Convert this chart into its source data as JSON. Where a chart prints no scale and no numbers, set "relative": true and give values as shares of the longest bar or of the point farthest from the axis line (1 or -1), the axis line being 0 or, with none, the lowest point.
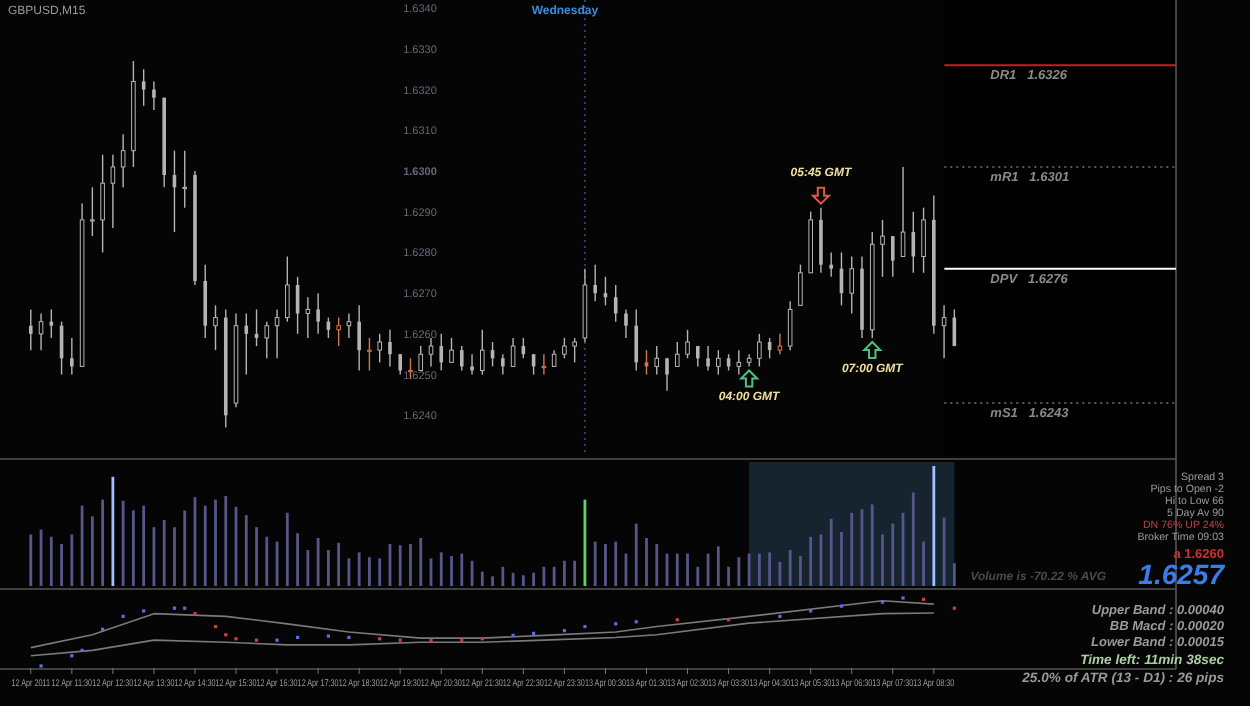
{
  "chart_data": [
    {
      "type": "candlestick",
      "title": "GBPUSD,M15",
      "x": [
        "2011-04-12T10:30",
        "2011-04-12T10:45",
        "2011-04-12T11:00",
        "2011-04-12T11:15",
        "2011-04-12T11:30",
        "2011-04-12T11:45",
        "2011-04-12T12:00",
        "2011-04-12T12:15",
        "2011-04-12T12:30",
        "2011-04-12T12:45",
        "2011-04-12T13:00",
        "2011-04-12T13:15",
        "2011-04-12T13:30",
        "2011-04-12T13:45",
        "2011-04-12T14:00",
        "2011-04-12T14:15",
        "2011-04-12T14:30",
        "2011-04-12T14:45",
        "2011-04-12T15:00",
        "2011-04-12T15:15",
        "2011-04-12T15:30",
        "2011-04-12T15:45",
        "2011-04-12T16:00",
        "2011-04-12T16:15",
        "2011-04-12T16:30",
        "2011-04-12T16:45",
        "2011-04-12T17:00",
        "2011-04-12T17:15",
        "2011-04-12T17:30",
        "2011-04-12T17:45",
        "2011-04-12T18:00",
        "2011-04-12T18:15",
        "2011-04-12T18:30",
        "2011-04-12T18:45",
        "2011-04-12T19:00",
        "2011-04-12T19:15",
        "2011-04-12T19:30",
        "2011-04-12T19:45",
        "2011-04-12T20:00",
        "2011-04-12T20:15",
        "2011-04-12T20:30",
        "2011-04-12T20:45",
        "2011-04-12T21:00",
        "2011-04-12T21:15",
        "2011-04-12T21:30",
        "2011-04-12T21:45",
        "2011-04-12T22:00",
        "2011-04-12T22:15",
        "2011-04-12T22:30",
        "2011-04-12T22:45",
        "2011-04-12T23:00",
        "2011-04-12T23:15",
        "2011-04-12T23:30",
        "2011-04-12T23:45",
        "2011-04-13T00:00",
        "2011-04-13T00:15",
        "2011-04-13T00:30",
        "2011-04-13T00:45",
        "2011-04-13T01:00",
        "2011-04-13T01:15",
        "2011-04-13T01:30",
        "2011-04-13T01:45",
        "2011-04-13T02:00",
        "2011-04-13T02:15",
        "2011-04-13T02:30",
        "2011-04-13T02:45",
        "2011-04-13T03:00",
        "2011-04-13T03:15",
        "2011-04-13T03:30",
        "2011-04-13T03:45",
        "2011-04-13T04:00",
        "2011-04-13T04:15",
        "2011-04-13T04:30",
        "2011-04-13T04:45",
        "2011-04-13T05:00",
        "2011-04-13T05:15",
        "2011-04-13T05:30",
        "2011-04-13T05:45",
        "2011-04-13T06:00",
        "2011-04-13T06:15",
        "2011-04-13T06:30",
        "2011-04-13T06:45",
        "2011-04-13T07:00",
        "2011-04-13T07:15",
        "2011-04-13T07:30",
        "2011-04-13T07:45",
        "2011-04-13T08:00",
        "2011-04-13T08:15",
        "2011-04-13T08:30",
        "2011-04-13T08:45",
        "2011-04-13T09:00"
      ],
      "ohlc": [
        [
          1.6262,
          1.6266,
          1.6256,
          1.626
        ],
        [
          1.626,
          1.6265,
          1.6256,
          1.6263
        ],
        [
          1.6263,
          1.6266,
          1.6259,
          1.6262
        ],
        [
          1.6262,
          1.6263,
          1.625,
          1.6254
        ],
        [
          1.6254,
          1.6259,
          1.625,
          1.6252
        ],
        [
          1.6252,
          1.6292,
          1.6252,
          1.6288
        ],
        [
          1.6288,
          1.6296,
          1.6284,
          1.6288
        ],
        [
          1.6288,
          1.6304,
          1.628,
          1.6297
        ],
        [
          1.6297,
          1.6304,
          1.6286,
          1.6301
        ],
        [
          1.6301,
          1.6309,
          1.6296,
          1.6305
        ],
        [
          1.6305,
          1.6327,
          1.6301,
          1.6322
        ],
        [
          1.6322,
          1.6325,
          1.6316,
          1.632
        ],
        [
          1.632,
          1.6322,
          1.6315,
          1.6318
        ],
        [
          1.6318,
          1.6318,
          1.6296,
          1.6299
        ],
        [
          1.6299,
          1.6305,
          1.6285,
          1.6296
        ],
        [
          1.6296,
          1.6305,
          1.6291,
          1.6296
        ],
        [
          1.6299,
          1.63,
          1.6272,
          1.6273
        ],
        [
          1.6273,
          1.6277,
          1.6259,
          1.6262
        ],
        [
          1.6262,
          1.6267,
          1.6256,
          1.6264
        ],
        [
          1.6264,
          1.6266,
          1.6237,
          1.624
        ],
        [
          1.6243,
          1.6265,
          1.6242,
          1.6262
        ],
        [
          1.6262,
          1.6265,
          1.625,
          1.626
        ],
        [
          1.626,
          1.6266,
          1.6257,
          1.6259
        ],
        [
          1.6259,
          1.6263,
          1.6254,
          1.6262
        ],
        [
          1.6262,
          1.6266,
          1.6254,
          1.6264
        ],
        [
          1.6264,
          1.6279,
          1.6263,
          1.6272
        ],
        [
          1.6272,
          1.6274,
          1.626,
          1.6265
        ],
        [
          1.6265,
          1.6269,
          1.6259,
          1.6266
        ],
        [
          1.6266,
          1.627,
          1.626,
          1.6263
        ],
        [
          1.6263,
          1.6264,
          1.6259,
          1.6261
        ],
        [
          1.6261,
          1.6264,
          1.6257,
          1.6262
        ],
        [
          1.6262,
          1.6265,
          1.6259,
          1.6263
        ],
        [
          1.6263,
          1.6267,
          1.6251,
          1.6256
        ],
        [
          1.6256,
          1.6259,
          1.6251,
          1.6256
        ],
        [
          1.6256,
          1.626,
          1.6253,
          1.6258
        ],
        [
          1.6258,
          1.6261,
          1.6252,
          1.6255
        ],
        [
          1.6255,
          1.6255,
          1.625,
          1.6251
        ],
        [
          1.6251,
          1.6254,
          1.6249,
          1.6251
        ],
        [
          1.6251,
          1.6257,
          1.6251,
          1.6255
        ],
        [
          1.6255,
          1.6259,
          1.6252,
          1.6257
        ],
        [
          1.6257,
          1.626,
          1.6251,
          1.6253
        ],
        [
          1.6253,
          1.6259,
          1.6253,
          1.6256
        ],
        [
          1.6256,
          1.6257,
          1.6251,
          1.6252
        ],
        [
          1.6252,
          1.6255,
          1.625,
          1.6251
        ],
        [
          1.6251,
          1.6261,
          1.625,
          1.6256
        ],
        [
          1.6256,
          1.6258,
          1.6252,
          1.6254
        ],
        [
          1.6254,
          1.6255,
          1.625,
          1.6252
        ],
        [
          1.6252,
          1.6259,
          1.6252,
          1.6257
        ],
        [
          1.6257,
          1.6259,
          1.6254,
          1.6255
        ],
        [
          1.6255,
          1.6255,
          1.625,
          1.6252
        ],
        [
          1.6252,
          1.6255,
          1.625,
          1.6252
        ],
        [
          1.6252,
          1.6256,
          1.6252,
          1.6255
        ],
        [
          1.6255,
          1.6259,
          1.6254,
          1.6257
        ],
        [
          1.6257,
          1.6259,
          1.6253,
          1.6258
        ],
        [
          1.6259,
          1.6276,
          1.6258,
          1.6272
        ],
        [
          1.6272,
          1.6277,
          1.6268,
          1.627
        ],
        [
          1.627,
          1.6274,
          1.6267,
          1.6269
        ],
        [
          1.6269,
          1.6272,
          1.6263,
          1.6265
        ],
        [
          1.6265,
          1.6266,
          1.6259,
          1.6262
        ],
        [
          1.6262,
          1.6266,
          1.6251,
          1.6253
        ],
        [
          1.6253,
          1.6256,
          1.625,
          1.6252
        ],
        [
          1.6252,
          1.6257,
          1.625,
          1.6254
        ],
        [
          1.6254,
          1.6254,
          1.6246,
          1.625
        ],
        [
          1.6252,
          1.6258,
          1.6252,
          1.6255
        ],
        [
          1.6255,
          1.6261,
          1.6254,
          1.6258
        ],
        [
          1.6257,
          1.6257,
          1.6252,
          1.6254
        ],
        [
          1.6254,
          1.6257,
          1.6251,
          1.6252
        ],
        [
          1.6252,
          1.6256,
          1.625,
          1.6254
        ],
        [
          1.6254,
          1.6255,
          1.6251,
          1.6252
        ],
        [
          1.6252,
          1.6256,
          1.625,
          1.6253
        ],
        [
          1.6253,
          1.6255,
          1.6252,
          1.6254
        ],
        [
          1.6254,
          1.626,
          1.6252,
          1.6258
        ],
        [
          1.6258,
          1.6259,
          1.6254,
          1.6256
        ],
        [
          1.6256,
          1.626,
          1.6255,
          1.6257
        ],
        [
          1.6257,
          1.6268,
          1.6256,
          1.6266
        ],
        [
          1.6267,
          1.6277,
          1.6267,
          1.6275
        ],
        [
          1.6275,
          1.629,
          1.6275,
          1.6288
        ],
        [
          1.6288,
          1.6291,
          1.6275,
          1.6277
        ],
        [
          1.6277,
          1.628,
          1.6274,
          1.6276
        ],
        [
          1.6276,
          1.628,
          1.6267,
          1.627
        ],
        [
          1.627,
          1.6279,
          1.6265,
          1.6276
        ],
        [
          1.6276,
          1.6279,
          1.6259,
          1.6261
        ],
        [
          1.6261,
          1.6285,
          1.6259,
          1.6282
        ],
        [
          1.6282,
          1.6288,
          1.6274,
          1.6284
        ],
        [
          1.6284,
          1.6284,
          1.6274,
          1.6278
        ],
        [
          1.6279,
          1.6301,
          1.6279,
          1.6285
        ],
        [
          1.6285,
          1.629,
          1.6275,
          1.6279
        ],
        [
          1.6279,
          1.6291,
          1.6275,
          1.6288
        ],
        [
          1.6288,
          1.6294,
          1.626,
          1.6262
        ],
        [
          1.6262,
          1.6267,
          1.6254,
          1.6264
        ],
        [
          1.6264,
          1.6266,
          1.6257,
          1.6257
        ]
      ],
      "colors": [
        "#b4b4b4",
        "#b4b4b4",
        "#b4b4b4",
        "#b4b4b4",
        "#b4b4b4",
        "#b4b4b4",
        "#b4b4b4",
        "#b4b4b4",
        "#b4b4b4",
        "#b4b4b4",
        "#b4b4b4",
        "#b4b4b4",
        "#b4b4b4",
        "#b4b4b4",
        "#b4b4b4",
        "#b4b4b4",
        "#b4b4b4",
        "#b4b4b4",
        "#b4b4b4",
        "#b4b4b4",
        "#b4b4b4",
        "#b4b4b4",
        "#b4b4b4",
        "#b4b4b4",
        "#b4b4b4",
        "#b4b4b4",
        "#b4b4b4",
        "#b4b4b4",
        "#b4b4b4",
        "#b4b4b4",
        "#d2784b",
        "#b4b4b4",
        "#b4b4b4",
        "#d2784b",
        "#b4b4b4",
        "#b4b4b4",
        "#b4b4b4",
        "#d2784b",
        "#b4b4b4",
        "#b4b4b4",
        "#b4b4b4",
        "#b4b4b4",
        "#b4b4b4",
        "#b4b4b4",
        "#b4b4b4",
        "#b4b4b4",
        "#b4b4b4",
        "#b4b4b4",
        "#b4b4b4",
        "#b4b4b4",
        "#d2784b",
        "#b4b4b4",
        "#b4b4b4",
        "#b4b4b4",
        "#b4b4b4",
        "#b4b4b4",
        "#b4b4b4",
        "#b4b4b4",
        "#b4b4b4",
        "#b4b4b4",
        "#d2784b",
        "#b4b4b4",
        "#b4b4b4",
        "#b4b4b4",
        "#b4b4b4",
        "#b4b4b4",
        "#b4b4b4",
        "#b4b4b4",
        "#b4b4b4",
        "#b4b4b4",
        "#b4b4b4",
        "#b4b4b4",
        "#b4b4b4",
        "#d2784b",
        "#b4b4b4",
        "#b4b4b4",
        "#b4b4b4",
        "#b4b4b4",
        "#b4b4b4",
        "#b4b4b4",
        "#b4b4b4",
        "#b4b4b4",
        "#b4b4b4",
        "#b4b4b4",
        "#b4b4b4",
        "#b4b4b4",
        "#b4b4b4",
        "#b4b4b4",
        "#b4b4b4",
        "#b4b4b4",
        "#b4b4b4"
      ],
      "xlim": [
        "2011-04-12T09:45",
        "2011-04-13T14:24"
      ],
      "ylim": [
        1.623,
        1.6342
      ],
      "yticks": [
        {
          "value": 1.624,
          "label": "1.6240"
        },
        {
          "value": 1.625,
          "label": "1.6250"
        },
        {
          "value": 1.626,
          "label": "1.6260"
        },
        {
          "value": 1.627,
          "label": "1.6270"
        },
        {
          "value": 1.628,
          "label": "1.6280"
        },
        {
          "value": 1.629,
          "label": "1.6290"
        },
        {
          "value": 1.63,
          "label": "1.6300"
        },
        {
          "value": 1.631,
          "label": "1.6310"
        },
        {
          "value": 1.632,
          "label": "1.6320"
        },
        {
          "value": 1.633,
          "label": "1.6330"
        },
        {
          "value": 1.634,
          "label": "1.6340"
        }
      ],
      "tick_labels": "y",
      "ref_lines": [
        {
          "axis": "x",
          "value": "2011-04-13T00:00",
          "label": "Wednesday",
          "color": "#3c8cdc",
          "line_style": "dotted"
        },
        {
          "axis": "y",
          "value": 1.6326,
          "label": "DR1   1.6326",
          "color": "#c81e1e"
        },
        {
          "axis": "y",
          "value": 1.6301,
          "label": "mR1   1.6301",
          "color": "#777777",
          "line_style": "dotted"
        },
        {
          "axis": "y",
          "value": 1.6276,
          "label": "DPV   1.6276",
          "color": "#ffffff"
        },
        {
          "axis": "y",
          "value": 1.6243,
          "label": "mS1   1.6243",
          "color": "#777777",
          "line_style": "dotted"
        }
      ],
      "annotations": [
        {
          "text": "05:45 GMT",
          "x": "2011-04-13T05:45",
          "y": 1.6291
        },
        {
          "text": "04:00 GMT",
          "x": "2011-04-13T04:00",
          "y": 1.6252
        },
        {
          "text": "07:00 GMT",
          "x": "2011-04-13T07:00",
          "y": 1.6259
        }
      ]
    },
    {
      "type": "bar",
      "relative": true,
      "tick_labels": false,
      "x": [
        "2011-04-12T10:30",
        "2011-04-12T10:45",
        "2011-04-12T11:00",
        "2011-04-12T11:15",
        "2011-04-12T11:30",
        "2011-04-12T11:45",
        "2011-04-12T12:00",
        "2011-04-12T12:15",
        "2011-04-12T12:30",
        "2011-04-12T12:45",
        "2011-04-12T13:00",
        "2011-04-12T13:15",
        "2011-04-12T13:30",
        "2011-04-12T13:45",
        "2011-04-12T14:00",
        "2011-04-12T14:15",
        "2011-04-12T14:30",
        "2011-04-12T14:45",
        "2011-04-12T15:00",
        "2011-04-12T15:15",
        "2011-04-12T15:30",
        "2011-04-12T15:45",
        "2011-04-12T16:00",
        "2011-04-12T16:15",
        "2011-04-12T16:30",
        "2011-04-12T16:45",
        "2011-04-12T17:00",
        "2011-04-12T17:15",
        "2011-04-12T17:30",
        "2011-04-12T17:45",
        "2011-04-12T18:00",
        "2011-04-12T18:15",
        "2011-04-12T18:30",
        "2011-04-12T18:45",
        "2011-04-12T19:00",
        "2011-04-12T19:15",
        "2011-04-12T19:30",
        "2011-04-12T19:45",
        "2011-04-12T20:00",
        "2011-04-12T20:15",
        "2011-04-12T20:30",
        "2011-04-12T20:45",
        "2011-04-12T21:00",
        "2011-04-12T21:15",
        "2011-04-12T21:30",
        "2011-04-12T21:45",
        "2011-04-12T22:00",
        "2011-04-12T22:15",
        "2011-04-12T22:30",
        "2011-04-12T22:45",
        "2011-04-12T23:00",
        "2011-04-12T23:15",
        "2011-04-12T23:30",
        "2011-04-12T23:45",
        "2011-04-13T00:00",
        "2011-04-13T00:15",
        "2011-04-13T00:30",
        "2011-04-13T00:45",
        "2011-04-13T01:00",
        "2011-04-13T01:15",
        "2011-04-13T01:30",
        "2011-04-13T01:45",
        "2011-04-13T02:00",
        "2011-04-13T02:15",
        "2011-04-13T02:30",
        "2011-04-13T02:45",
        "2011-04-13T03:00",
        "2011-04-13T03:15",
        "2011-04-13T03:30",
        "2011-04-13T03:45",
        "2011-04-13T04:00",
        "2011-04-13T04:15",
        "2011-04-13T04:30",
        "2011-04-13T04:45",
        "2011-04-13T05:00",
        "2011-04-13T05:15",
        "2011-04-13T05:30",
        "2011-04-13T05:45",
        "2011-04-13T06:00",
        "2011-04-13T06:15",
        "2011-04-13T06:30",
        "2011-04-13T06:45",
        "2011-04-13T07:00",
        "2011-04-13T07:15",
        "2011-04-13T07:30",
        "2011-04-13T07:45",
        "2011-04-13T08:00",
        "2011-04-13T08:15",
        "2011-04-13T08:30",
        "2011-04-13T08:45",
        "2011-04-13T09:00"
      ],
      "values": [
        0.43,
        0.47,
        0.41,
        0.35,
        0.43,
        0.67,
        0.58,
        0.72,
        0.91,
        0.71,
        0.63,
        0.67,
        0.49,
        0.55,
        0.49,
        0.63,
        0.74,
        0.67,
        0.72,
        0.75,
        0.66,
        0.59,
        0.49,
        0.41,
        0.37,
        0.61,
        0.44,
        0.3,
        0.4,
        0.3,
        0.36,
        0.23,
        0.28,
        0.24,
        0.23,
        0.35,
        0.34,
        0.35,
        0.4,
        0.23,
        0.28,
        0.25,
        0.27,
        0.21,
        0.12,
        0.08,
        0.16,
        0.11,
        0.09,
        0.11,
        0.16,
        0.16,
        0.21,
        0.21,
        0.72,
        0.37,
        0.35,
        0.37,
        0.27,
        0.52,
        0.4,
        0.35,
        0.27,
        0.27,
        0.27,
        0.16,
        0.27,
        0.33,
        0.16,
        0.24,
        0.27,
        0.27,
        0.28,
        0.2,
        0.3,
        0.25,
        0.41,
        0.43,
        0.56,
        0.45,
        0.61,
        0.64,
        0.68,
        0.43,
        0.52,
        0.61,
        0.78,
        0.37,
        1,
        0.57,
        0.19
      ],
      "colors": [
        "#56568a",
        "#56568a",
        "#56568a",
        "#56568a",
        "#56568a",
        "#56568a",
        "#56568a",
        "#56568a",
        "#a0c0ff",
        "#56568a",
        "#56568a",
        "#56568a",
        "#56568a",
        "#56568a",
        "#56568a",
        "#56568a",
        "#56568a",
        "#56568a",
        "#56568a",
        "#56568a",
        "#56568a",
        "#56568a",
        "#56568a",
        "#56568a",
        "#56568a",
        "#56568a",
        "#56568a",
        "#56568a",
        "#56568a",
        "#56568a",
        "#56568a",
        "#56568a",
        "#56568a",
        "#56568a",
        "#56568a",
        "#56568a",
        "#56568a",
        "#56568a",
        "#56568a",
        "#56568a",
        "#56568a",
        "#56568a",
        "#56568a",
        "#56568a",
        "#56568a",
        "#56568a",
        "#56568a",
        "#56568a",
        "#56568a",
        "#56568a",
        "#56568a",
        "#56568a",
        "#56568a",
        "#56568a",
        "#5fd35f",
        "#56568a",
        "#56568a",
        "#56568a",
        "#56568a",
        "#56568a",
        "#56568a",
        "#56568a",
        "#56568a",
        "#56568a",
        "#56568a",
        "#56568a",
        "#56568a",
        "#56568a",
        "#56568a",
        "#56568a",
        "#56568a",
        "#56568a",
        "#56568a",
        "#56568a",
        "#56568a",
        "#56568a",
        "#56568a",
        "#56568a",
        "#56568a",
        "#56568a",
        "#56568a",
        "#56568a",
        "#56568a",
        "#56568a",
        "#56568a",
        "#56568a",
        "#56568a",
        "#56568a",
        "#a0c0ff",
        "#56568a",
        "#56568a"
      ],
      "xlim": [
        "2011-04-12T09:45",
        "2011-04-13T14:24"
      ],
      "bands": [
        {
          "axis": "x",
          "from": "2011-04-13T04:00",
          "to": "2011-04-13T09:00",
          "color": "#162430"
        }
      ],
      "annotations": [
        "Spread 3",
        "Pips to Open -2",
        "Hi to Low 66",
        "5 Day Av 90",
        "DN 76%  UP 24%",
        "Broker Time 09:03",
        "a 1.6260",
        "1.6257",
        "Volume is -70.22 % AVG"
      ]
    },
    {
      "type": "line",
      "relative": true,
      "tick_labels": "x",
      "xlim": [
        "2011-04-12T09:45",
        "2011-04-13T14:24"
      ],
      "xticks": [
        {
          "value": "2011-04-12T10:30",
          "label": "12 Apr 2011"
        },
        {
          "value": "2011-04-12T11:30",
          "label": "12 Apr 11:30"
        },
        {
          "value": "2011-04-12T12:30",
          "label": "12 Apr 12:30"
        },
        {
          "value": "2011-04-12T13:30",
          "label": "12 Apr 13:30"
        },
        {
          "value": "2011-04-12T14:30",
          "label": "12 Apr 14:30"
        },
        {
          "value": "2011-04-12T15:30",
          "label": "12 Apr 15:30"
        },
        {
          "value": "2011-04-12T16:30",
          "label": "12 Apr 16:30"
        },
        {
          "value": "2011-04-12T17:30",
          "label": "12 Apr 17:30"
        },
        {
          "value": "2011-04-12T18:30",
          "label": "12 Apr 18:30"
        },
        {
          "value": "2011-04-12T19:30",
          "label": "12 Apr 19:30"
        },
        {
          "value": "2011-04-12T20:30",
          "label": "12 Apr 20:30"
        },
        {
          "value": "2011-04-12T21:30",
          "label": "12 Apr 21:30"
        },
        {
          "value": "2011-04-12T22:30",
          "label": "12 Apr 22:30"
        },
        {
          "value": "2011-04-12T23:30",
          "label": "12 Apr 23:30"
        },
        {
          "value": "2011-04-13T00:30",
          "label": "13 Apr 00:30"
        },
        {
          "value": "2011-04-13T01:30",
          "label": "13 Apr 01:30"
        },
        {
          "value": "2011-04-13T02:30",
          "label": "13 Apr 02:30"
        },
        {
          "value": "2011-04-13T03:30",
          "label": "13 Apr 03:30"
        },
        {
          "value": "2011-04-13T04:30",
          "label": "13 Apr 04:30"
        },
        {
          "value": "2011-04-13T05:30",
          "label": "13 Apr 05:30"
        },
        {
          "value": "2011-04-13T06:30",
          "label": "13 Apr 06:30"
        },
        {
          "value": "2011-04-13T07:30",
          "label": "13 Apr 07:30"
        },
        {
          "value": "2011-04-13T08:30",
          "label": "13 Apr 08:30"
        }
      ],
      "series": [
        {
          "type": "line",
          "color": "#7a7a7a",
          "x": [
            "2011-04-12T10:30",
            "2011-04-12T12:00",
            "2011-04-12T13:30",
            "2011-04-12T15:15",
            "2011-04-12T16:45",
            "2011-04-12T18:15",
            "2011-04-12T20:00",
            "2011-04-12T21:30",
            "2011-04-12T23:00",
            "2011-04-13T00:45",
            "2011-04-13T01:45",
            "2011-04-13T04:00",
            "2011-04-13T07:15",
            "2011-04-13T08:30"
          ],
          "values": [
            0.27,
            0.46,
            0.77,
            0.73,
            0.62,
            0.5,
            0.41,
            0.41,
            0.45,
            0.5,
            0.58,
            0.73,
            0.96,
            0.91
          ]
        },
        {
          "type": "line",
          "color": "#7a7a7a",
          "x": [
            "2011-04-12T10:30",
            "2011-04-12T12:00",
            "2011-04-12T13:30",
            "2011-04-12T15:15",
            "2011-04-12T16:45",
            "2011-04-12T18:15",
            "2011-04-12T20:00",
            "2011-04-12T21:30",
            "2011-04-12T23:00",
            "2011-04-13T00:45",
            "2011-04-13T01:45",
            "2011-04-13T04:00",
            "2011-04-13T07:15",
            "2011-04-13T08:30"
          ],
          "values": [
            0.15,
            0.23,
            0.38,
            0.35,
            0.31,
            0.31,
            0.35,
            0.35,
            0.38,
            0.42,
            0.46,
            0.63,
            0.77,
            0.78
          ]
        },
        {
          "type": "scatter",
          "marker": "square",
          "x": [
            "2011-04-12T10:45",
            "2011-04-12T11:30",
            "2011-04-12T11:45",
            "2011-04-12T12:15",
            "2011-04-12T12:45",
            "2011-04-12T13:15",
            "2011-04-12T14:00",
            "2011-04-12T14:15",
            "2011-04-12T14:30",
            "2011-04-12T15:00",
            "2011-04-12T15:15",
            "2011-04-12T15:30",
            "2011-04-12T16:00",
            "2011-04-12T16:30",
            "2011-04-12T17:00",
            "2011-04-12T17:45",
            "2011-04-12T18:15",
            "2011-04-12T19:00",
            "2011-04-12T19:30",
            "2011-04-12T20:15",
            "2011-04-12T21:00",
            "2011-04-12T21:30",
            "2011-04-12T22:15",
            "2011-04-12T22:45",
            "2011-04-12T23:30",
            "2011-04-13T00:00",
            "2011-04-13T00:45",
            "2011-04-13T01:15",
            "2011-04-13T02:15",
            "2011-04-13T03:30",
            "2011-04-13T04:45",
            "2011-04-13T05:30",
            "2011-04-13T06:15",
            "2011-04-13T07:15",
            "2011-04-13T07:45",
            "2011-04-13T08:15",
            "2011-04-13T09:00"
          ],
          "values": [
            0,
            0.15,
            0.23,
            0.54,
            0.73,
            0.81,
            0.85,
            0.85,
            0.77,
            0.58,
            0.46,
            0.4,
            0.38,
            0.38,
            0.42,
            0.44,
            0.42,
            0.4,
            0.38,
            0.38,
            0.38,
            0.4,
            0.45,
            0.48,
            0.52,
            0.58,
            0.62,
            0.65,
            0.68,
            0.68,
            0.73,
            0.81,
            0.88,
            0.94,
            1,
            0.98,
            0.85
          ],
          "colors": [
            "#5a6ee6",
            "#5a6ee6",
            "#5a6ee6",
            "#5a6ee6",
            "#5a6ee6",
            "#5a6ee6",
            "#5a6ee6",
            "#5a6ee6",
            "#d23c3c",
            "#d23c3c",
            "#d23c3c",
            "#d23c3c",
            "#d23c3c",
            "#5a6ee6",
            "#5a6ee6",
            "#5a6ee6",
            "#5a6ee6",
            "#d23c3c",
            "#d23c3c",
            "#d23c3c",
            "#d23c3c",
            "#d23c3c",
            "#5a6ee6",
            "#5a6ee6",
            "#5a6ee6",
            "#5a6ee6",
            "#5a6ee6",
            "#5a6ee6",
            "#d23c3c",
            "#d23c3c",
            "#5a6ee6",
            "#5a6ee6",
            "#5a6ee6",
            "#5a6ee6",
            "#5a6ee6",
            "#d23c3c",
            "#d23c3c"
          ]
        }
      ],
      "annotations": [
        "Upper Band : 0.00040",
        "BB Macd : 0.00020",
        "Lower Band : 0.00015",
        "Time left: 11min 38sec",
        "25.0% of ATR (13 - D1) : 26 pips"
      ]
    }
  ]
}
